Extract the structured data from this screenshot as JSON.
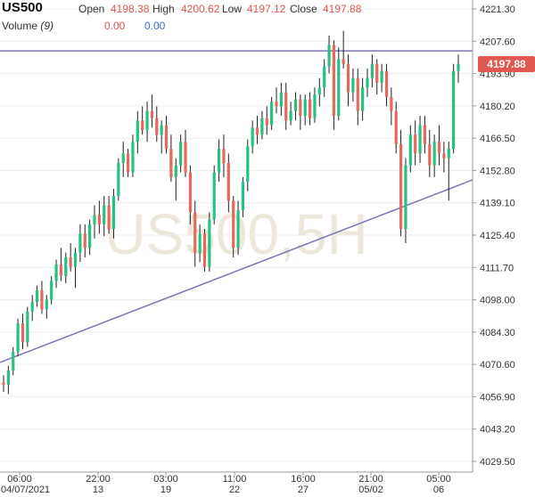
{
  "header": {
    "symbol": "US500",
    "open_label": "Open",
    "open_value": "4198.38",
    "high_label": "High",
    "high_value": "4200.62",
    "low_label": "Low",
    "low_value": "4197.12",
    "close_label": "Close",
    "close_value": "4197.88",
    "volume_label": "Volume",
    "volume_param": "(9)",
    "volume_value_a": "0.00",
    "volume_value_b": "0.00"
  },
  "watermark": "US500,5H",
  "colors": {
    "up": "#26c281",
    "down": "#e8675e",
    "trendline": "#7a76b8",
    "grid": "#ececec",
    "axis_text": "#333333",
    "price_tag": "#e0584f",
    "watermark": "#ede7da"
  },
  "chart_data": {
    "type": "candlestick",
    "title": "",
    "y_ticks": [
      "4221.30",
      "4207.60",
      "4193.90",
      "4180.20",
      "4166.50",
      "4152.80",
      "4139.10",
      "4125.40",
      "4111.70",
      "4098.00",
      "4084.30",
      "4070.60",
      "4056.90",
      "4043.20",
      "4029.50"
    ],
    "ylim": [
      4029.5,
      4221.3
    ],
    "x_ticks": [
      {
        "time": "06:00",
        "date": "04/07/2021"
      },
      {
        "time": "22:00",
        "date": "13"
      },
      {
        "time": "03:00",
        "date": "19"
      },
      {
        "time": "11:00",
        "date": "22"
      },
      {
        "time": "16:00",
        "date": "27"
      },
      {
        "time": "21:00",
        "date": "05/02"
      },
      {
        "time": "05:00",
        "date": "06"
      }
    ],
    "last_price": "4197.88",
    "levels": [
      {
        "name": "horizontal",
        "value": 4203.5
      }
    ],
    "trendlines": [
      {
        "from": [
          0,
          4072
        ],
        "to": [
          102,
          4152
        ]
      }
    ],
    "candles": [
      [
        4063,
        4066,
        4059,
        4062
      ],
      [
        4062,
        4070,
        4058,
        4068
      ],
      [
        4068,
        4078,
        4066,
        4076
      ],
      [
        4076,
        4090,
        4074,
        4088
      ],
      [
        4088,
        4092,
        4077,
        4080
      ],
      [
        4080,
        4095,
        4078,
        4093
      ],
      [
        4093,
        4100,
        4089,
        4097
      ],
      [
        4097,
        4104,
        4095,
        4102
      ],
      [
        4102,
        4106,
        4092,
        4094
      ],
      [
        4094,
        4100,
        4090,
        4098
      ],
      [
        4098,
        4108,
        4096,
        4106
      ],
      [
        4106,
        4115,
        4103,
        4113
      ],
      [
        4113,
        4120,
        4106,
        4108
      ],
      [
        4108,
        4118,
        4105,
        4116
      ],
      [
        4116,
        4122,
        4110,
        4112
      ],
      [
        4112,
        4120,
        4103,
        4118
      ],
      [
        4118,
        4130,
        4114,
        4126
      ],
      [
        4126,
        4130,
        4116,
        4120
      ],
      [
        4120,
        4132,
        4117,
        4130
      ],
      [
        4130,
        4138,
        4124,
        4134
      ],
      [
        4134,
        4140,
        4126,
        4130
      ],
      [
        4130,
        4142,
        4125,
        4138
      ],
      [
        4138,
        4142,
        4126,
        4128
      ],
      [
        4128,
        4145,
        4124,
        4142
      ],
      [
        4142,
        4158,
        4140,
        4156
      ],
      [
        4156,
        4165,
        4150,
        4160
      ],
      [
        4160,
        4162,
        4150,
        4152
      ],
      [
        4152,
        4168,
        4150,
        4165
      ],
      [
        4165,
        4178,
        4160,
        4174
      ],
      [
        4174,
        4180,
        4168,
        4170
      ],
      [
        4170,
        4182,
        4165,
        4178
      ],
      [
        4178,
        4185,
        4171,
        4175
      ],
      [
        4175,
        4180,
        4165,
        4168
      ],
      [
        4168,
        4174,
        4160,
        4172
      ],
      [
        4172,
        4176,
        4160,
        4162
      ],
      [
        4162,
        4168,
        4148,
        4150
      ],
      [
        4150,
        4158,
        4140,
        4155
      ],
      [
        4155,
        4168,
        4152,
        4165
      ],
      [
        4165,
        4170,
        4150,
        4152
      ],
      [
        4152,
        4155,
        4130,
        4135
      ],
      [
        4135,
        4140,
        4112,
        4118
      ],
      [
        4118,
        4130,
        4114,
        4126
      ],
      [
        4126,
        4128,
        4110,
        4112
      ],
      [
        4112,
        4135,
        4110,
        4132
      ],
      [
        4132,
        4155,
        4130,
        4152
      ],
      [
        4152,
        4166,
        4148,
        4162
      ],
      [
        4162,
        4168,
        4150,
        4156
      ],
      [
        4156,
        4160,
        4135,
        4140
      ],
      [
        4140,
        4142,
        4116,
        4120
      ],
      [
        4120,
        4140,
        4117,
        4136
      ],
      [
        4136,
        4150,
        4133,
        4148
      ],
      [
        4148,
        4166,
        4144,
        4163
      ],
      [
        4163,
        4174,
        4160,
        4171
      ],
      [
        4171,
        4176,
        4164,
        4168
      ],
      [
        4168,
        4178,
        4166,
        4175
      ],
      [
        4175,
        4180,
        4168,
        4172
      ],
      [
        4172,
        4184,
        4170,
        4182
      ],
      [
        4182,
        4188,
        4177,
        4180
      ],
      [
        4180,
        4190,
        4176,
        4186
      ],
      [
        4186,
        4190,
        4170,
        4174
      ],
      [
        4174,
        4182,
        4172,
        4178
      ],
      [
        4178,
        4186,
        4174,
        4183
      ],
      [
        4183,
        4185,
        4170,
        4176
      ],
      [
        4176,
        4185,
        4172,
        4183
      ],
      [
        4183,
        4186,
        4172,
        4175
      ],
      [
        4175,
        4188,
        4173,
        4185
      ],
      [
        4185,
        4192,
        4180,
        4188
      ],
      [
        4188,
        4200,
        4184,
        4197
      ],
      [
        4197,
        4210,
        4194,
        4206
      ],
      [
        4206,
        4208,
        4170,
        4176
      ],
      [
        4176,
        4205,
        4174,
        4200
      ],
      [
        4200,
        4212,
        4196,
        4198
      ],
      [
        4198,
        4202,
        4180,
        4186
      ],
      [
        4186,
        4196,
        4182,
        4192
      ],
      [
        4192,
        4196,
        4172,
        4178
      ],
      [
        4178,
        4192,
        4174,
        4188
      ],
      [
        4188,
        4196,
        4184,
        4192
      ],
      [
        4192,
        4202,
        4188,
        4198
      ],
      [
        4198,
        4200,
        4185,
        4190
      ],
      [
        4190,
        4198,
        4186,
        4195
      ],
      [
        4195,
        4198,
        4180,
        4184
      ],
      [
        4184,
        4188,
        4172,
        4178
      ],
      [
        4178,
        4182,
        4160,
        4164
      ],
      [
        4164,
        4170,
        4125,
        4128
      ],
      [
        4128,
        4158,
        4122,
        4155
      ],
      [
        4155,
        4172,
        4152,
        4168
      ],
      [
        4168,
        4174,
        4155,
        4160
      ],
      [
        4160,
        4176,
        4156,
        4172
      ],
      [
        4172,
        4176,
        4160,
        4164
      ],
      [
        4164,
        4170,
        4150,
        4155
      ],
      [
        4155,
        4168,
        4150,
        4165
      ],
      [
        4165,
        4172,
        4155,
        4160
      ],
      [
        4160,
        4165,
        4152,
        4158
      ],
      [
        4158,
        4165,
        4140,
        4162
      ],
      [
        4162,
        4198,
        4160,
        4195
      ],
      [
        4195,
        4202,
        4190,
        4198
      ]
    ]
  }
}
